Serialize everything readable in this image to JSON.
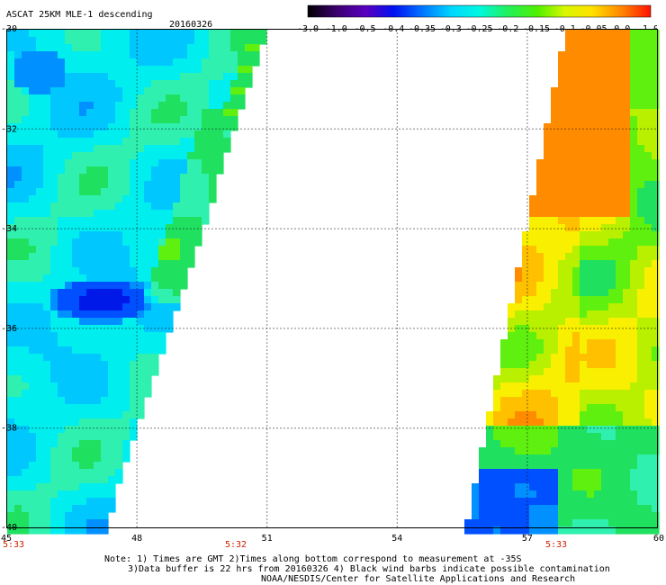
{
  "header": {
    "product": "ASCAT 25KM MLE-1 descending",
    "date": "20160326"
  },
  "colorbar": {
    "labels": [
      "-3.0",
      "-1.0",
      "-0.5",
      "-0.4",
      "-0.35",
      "-0.3",
      "-0.25",
      "-0.2",
      "-0.15",
      "-0.1",
      "-0.05",
      "0.0",
      "1.0"
    ],
    "colors": [
      "#1a0010",
      "#5a00b0",
      "#0020e0",
      "#0068ff",
      "#00b8ff",
      "#00f0f0",
      "#40f0a0",
      "#30e040",
      "#90f000",
      "#e8f000",
      "#ffb000",
      "#ff6000",
      "#ff1000"
    ]
  },
  "map": {
    "lon_ticks": [
      "45",
      "48",
      "51",
      "54",
      "57",
      "60"
    ],
    "lat_ticks": [
      "-30",
      "-32",
      "-34",
      "-36",
      "-38",
      "-40"
    ],
    "lon_range": [
      45,
      60
    ],
    "lat_range": [
      -30,
      -40
    ],
    "swaths": [
      {
        "name": "west",
        "time": "5:33",
        "time2": "5:32"
      },
      {
        "name": "east",
        "time": "5:33"
      }
    ]
  },
  "footer": {
    "note1": "Note: 1) Times are GMT 2)Times along bottom correspond to measurement at -35S",
    "note2": "3)Data buffer is 22 hrs from 20160326 4) Black wind barbs indicate possible contamination",
    "credit": "NOAA/NESDIS/Center for Satellite Applications and Research"
  }
}
